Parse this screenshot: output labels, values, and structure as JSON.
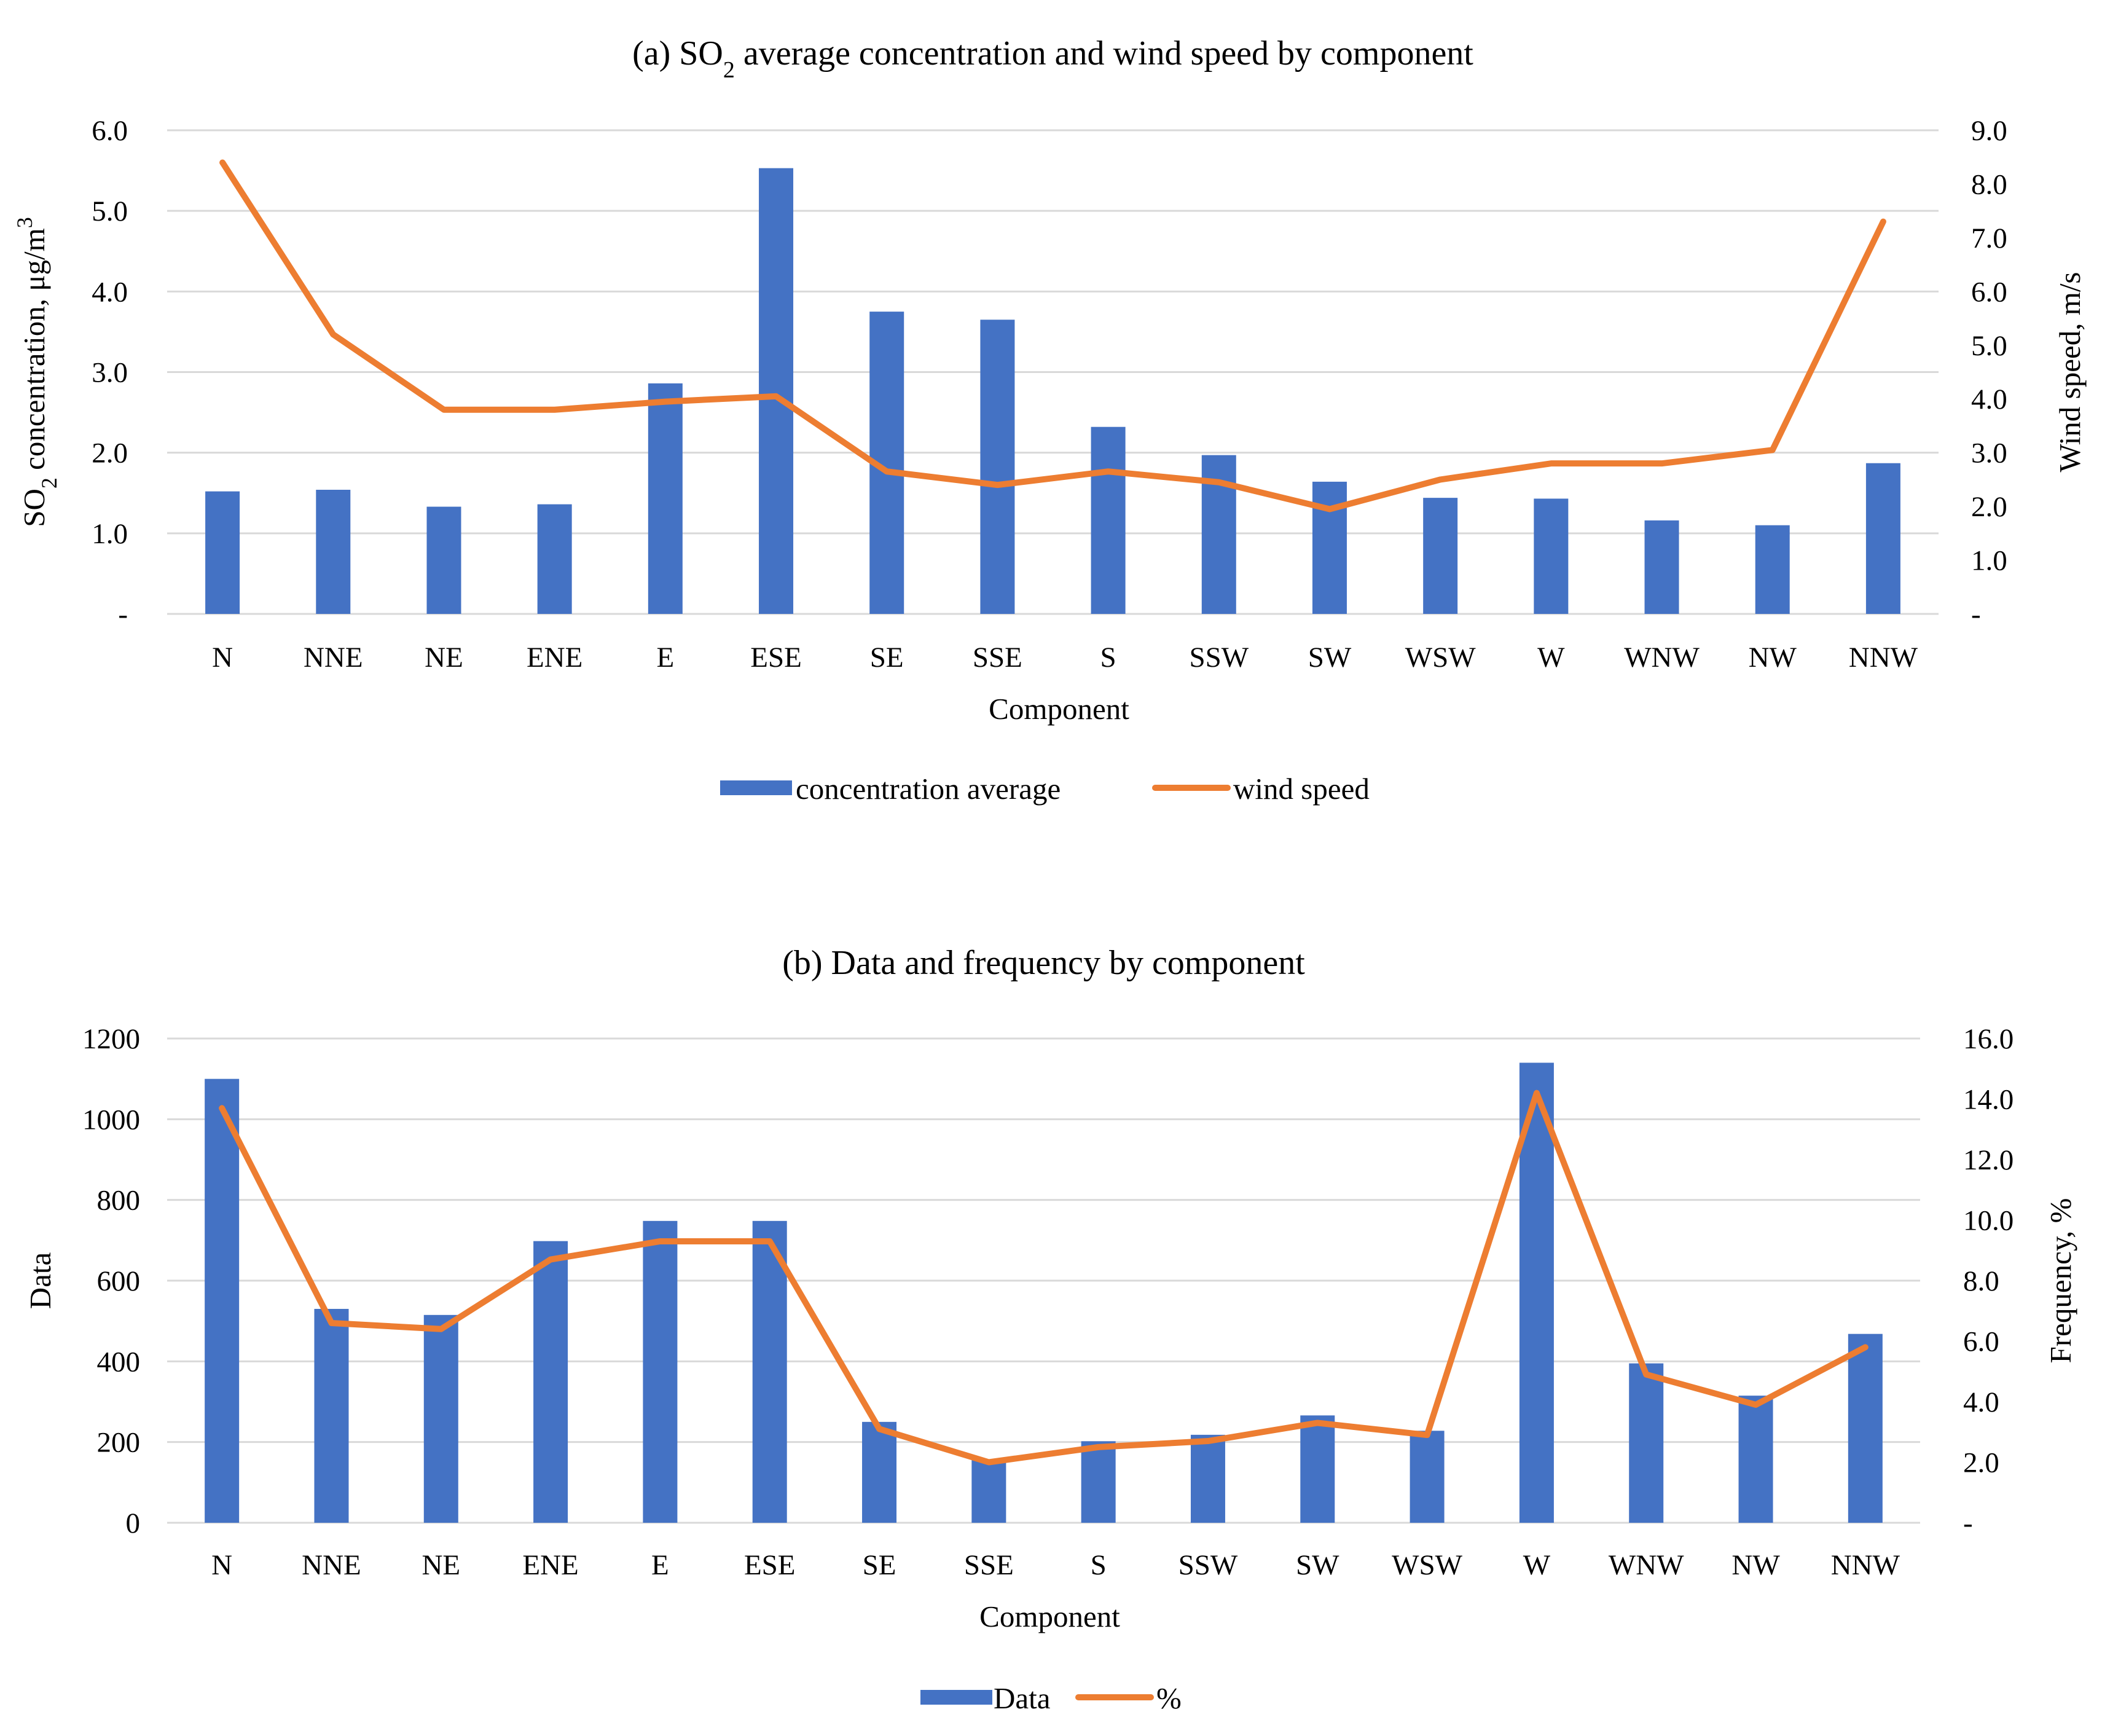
{
  "chart_data": [
    {
      "type": "bar",
      "title_prefix": "(a) SO",
      "title_sub": "2",
      "title_suffix": " average concentration and wind speed by component",
      "categories": [
        "N",
        "NNE",
        "NE",
        "ENE",
        "E",
        "ESE",
        "SE",
        "SSE",
        "S",
        "SSW",
        "SW",
        "WSW",
        "W",
        "WNW",
        "NW",
        "NNW"
      ],
      "series": [
        {
          "name": "concentration average",
          "type": "bar",
          "axis": "left",
          "values": [
            1.52,
            1.54,
            1.33,
            1.36,
            2.86,
            5.53,
            3.75,
            3.65,
            2.32,
            1.97,
            1.64,
            1.44,
            1.43,
            1.16,
            1.1,
            1.87
          ]
        },
        {
          "name": "wind speed",
          "type": "line",
          "axis": "right",
          "values": [
            8.4,
            5.2,
            3.8,
            3.8,
            3.95,
            4.05,
            2.65,
            2.4,
            2.65,
            2.45,
            1.95,
            2.5,
            2.8,
            2.8,
            3.05,
            7.3
          ]
        }
      ],
      "xlabel": "Component",
      "ylabel_prefix": "SO",
      "ylabel_sub": "2",
      "ylabel_suffix": " concentration, μg/m",
      "ylabel_sup": "3",
      "y2label": "Wind speed, m/s",
      "ylim": [
        0,
        6
      ],
      "y2lim": [
        0,
        9
      ],
      "yticks": [
        "-",
        "1.0",
        "2.0",
        "3.0",
        "4.0",
        "5.0",
        "6.0"
      ],
      "y2ticks": [
        "-",
        "1.0",
        "2.0",
        "3.0",
        "4.0",
        "5.0",
        "6.0",
        "7.0",
        "8.0",
        "9.0"
      ],
      "grid": true,
      "legend": "bottom"
    },
    {
      "type": "bar",
      "title": "(b) Data and frequency by component",
      "categories": [
        "N",
        "NNE",
        "NE",
        "ENE",
        "E",
        "ESE",
        "SE",
        "SSE",
        "S",
        "SSW",
        "SW",
        "WSW",
        "W",
        "WNW",
        "NW",
        "NNW"
      ],
      "series": [
        {
          "name": "Data",
          "type": "bar",
          "axis": "left",
          "values": [
            1100,
            530,
            515,
            698,
            748,
            748,
            250,
            155,
            202,
            218,
            266,
            228,
            1140,
            395,
            315,
            468
          ]
        },
        {
          "name": "%",
          "type": "line",
          "axis": "right",
          "values": [
            13.7,
            6.6,
            6.4,
            8.7,
            9.3,
            9.3,
            3.1,
            2.0,
            2.5,
            2.7,
            3.3,
            2.9,
            14.2,
            4.9,
            3.9,
            5.8
          ]
        }
      ],
      "xlabel": "Component",
      "ylabel": "Data",
      "y2label": "Frequency, %",
      "ylim": [
        0,
        1200
      ],
      "y2lim": [
        0,
        16
      ],
      "yticks": [
        "0",
        "200",
        "400",
        "600",
        "800",
        "1000",
        "1200"
      ],
      "y2ticks": [
        "-",
        "2.0",
        "4.0",
        "6.0",
        "8.0",
        "10.0",
        "12.0",
        "14.0",
        "16.0"
      ],
      "grid": true,
      "legend": "bottom"
    }
  ]
}
